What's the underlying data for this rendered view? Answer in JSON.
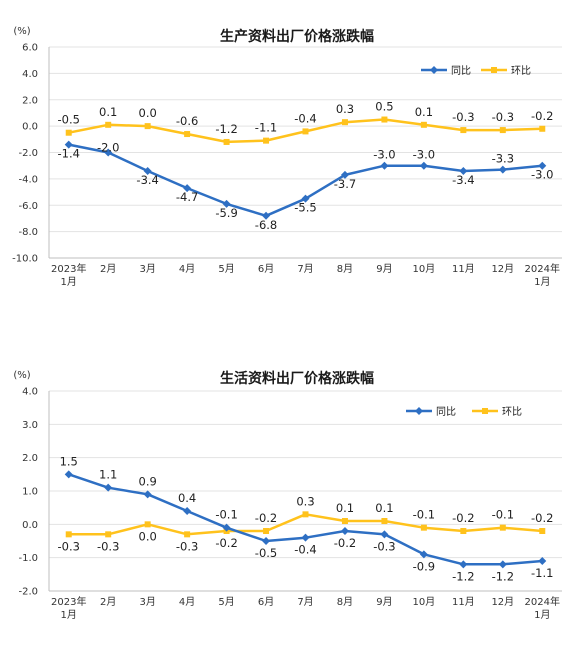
{
  "colors": {
    "yoy": "#2E6FC3",
    "mom": "#FFC21C",
    "grid": "#E3E3E3",
    "axis": "#BFBFBF"
  },
  "legend": {
    "yoy": "同比",
    "mom": "环比"
  },
  "x_ticks": [
    [
      "2023年",
      "1月"
    ],
    [
      "2月"
    ],
    [
      "3月"
    ],
    [
      "4月"
    ],
    [
      "5月"
    ],
    [
      "6月"
    ],
    [
      "7月"
    ],
    [
      "8月"
    ],
    [
      "9月"
    ],
    [
      "10月"
    ],
    [
      "11月"
    ],
    [
      "12月"
    ],
    [
      "2024年",
      "1月"
    ]
  ],
  "chart_data": [
    {
      "type": "line",
      "title": "生产资料出厂价格涨跌幅",
      "ylabel": "(%)",
      "ylim": [
        -10,
        6
      ],
      "yticks": [
        "6.0",
        "4.0",
        "2.0",
        "0.0",
        "-2.0",
        "-4.0",
        "-6.0",
        "-8.0",
        "-10.0"
      ],
      "categories": [
        "2023年1月",
        "2月",
        "3月",
        "4月",
        "5月",
        "6月",
        "7月",
        "8月",
        "9月",
        "10月",
        "11月",
        "12月",
        "2024年1月"
      ],
      "series": [
        {
          "name": "同比",
          "values": [
            -1.4,
            -2.0,
            -3.4,
            -4.7,
            -5.9,
            -6.8,
            -5.5,
            -3.7,
            -3.0,
            -3.0,
            -3.4,
            -3.3,
            -3.0
          ],
          "labels": [
            "-1.4",
            "-2.0",
            "-3.4",
            "-4.7",
            "-5.9",
            "-6.8",
            "-5.5",
            "-3.7",
            "-3.0",
            "-3.0",
            "-3.4",
            "-3.3",
            "-3.0"
          ]
        },
        {
          "name": "环比",
          "values": [
            -0.5,
            0.1,
            0.0,
            -0.6,
            -1.2,
            -1.1,
            -0.4,
            0.3,
            0.5,
            0.1,
            -0.3,
            -0.3,
            -0.2
          ],
          "labels": [
            "-0.5",
            "0.1",
            "0.0",
            "-0.6",
            "-1.2",
            "-1.1",
            "-0.4",
            "0.3",
            "0.5",
            "0.1",
            "-0.3",
            "-0.3",
            "-0.2"
          ]
        }
      ],
      "grid": true,
      "legend_position": "top-right"
    },
    {
      "type": "line",
      "title": "生活资料出厂价格涨跌幅",
      "ylabel": "(%)",
      "ylim": [
        -2,
        4
      ],
      "yticks": [
        "4.0",
        "3.0",
        "2.0",
        "1.0",
        "0.0",
        "-1.0",
        "-2.0"
      ],
      "categories": [
        "2023年1月",
        "2月",
        "3月",
        "4月",
        "5月",
        "6月",
        "7月",
        "8月",
        "9月",
        "10月",
        "11月",
        "12月",
        "2024年1月"
      ],
      "series": [
        {
          "name": "同比",
          "values": [
            1.5,
            1.1,
            0.9,
            0.4,
            -0.1,
            -0.5,
            -0.4,
            -0.2,
            -0.3,
            -0.9,
            -1.2,
            -1.2,
            -1.1
          ],
          "labels": [
            "1.5",
            "1.1",
            "0.9",
            "0.4",
            "-0.1",
            "-0.5",
            "-0.4",
            "-0.2",
            "-0.3",
            "-0.9",
            "-1.2",
            "-1.2",
            "-1.1"
          ]
        },
        {
          "name": "环比",
          "values": [
            -0.3,
            -0.3,
            0.0,
            -0.3,
            -0.2,
            -0.2,
            0.3,
            0.1,
            0.1,
            -0.1,
            -0.2,
            -0.1,
            -0.2
          ],
          "labels": [
            "-0.3",
            "-0.3",
            "0.0",
            "-0.3",
            "-0.2",
            "-0.2",
            "0.3",
            "0.1",
            "0.1",
            "-0.1",
            "-0.2",
            "-0.1",
            "-0.2"
          ]
        }
      ],
      "grid": true,
      "legend_position": "top-right"
    }
  ]
}
